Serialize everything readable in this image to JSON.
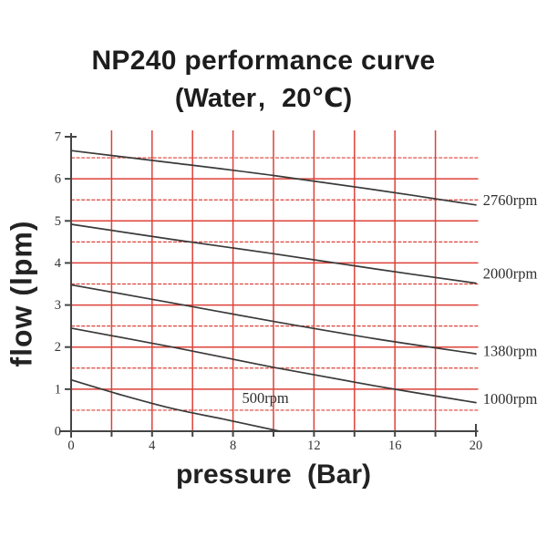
{
  "header": {
    "title": "NP240 performance curve",
    "subtitle": "(Water、20℃)",
    "subtitle_parts": {
      "open": "(Water",
      "comma": ",",
      "close": "20℃)"
    }
  },
  "chart_data": {
    "type": "line",
    "title": "NP240 performance curve",
    "subtitle": "(Water、20℃)",
    "xlabel": "pressure (Bar)",
    "ylabel": "flow (lpm)",
    "x_unit": "Bar",
    "y_unit": "lpm",
    "xlim": [
      0,
      20
    ],
    "ylim": [
      0,
      7
    ],
    "x_tick_step": 2,
    "x_tick_labels": [
      0,
      4,
      8,
      12,
      16,
      20
    ],
    "x_grid_values": [
      2,
      4,
      6,
      8,
      10,
      12,
      14,
      16,
      18
    ],
    "y_tick_labels": [
      0,
      1,
      2,
      3,
      4,
      5,
      6,
      7
    ],
    "y_grid_step": 0.5,
    "grid_on": true,
    "grid_color": "#dc4238",
    "curve_color": "#3a3a3a",
    "axis_color": "#454545",
    "legend_position": "right-of-curves",
    "series": [
      {
        "name": "2760rpm",
        "points": [
          [
            0,
            6.67
          ],
          [
            5,
            6.38
          ],
          [
            10,
            6.08
          ],
          [
            15,
            5.74
          ],
          [
            20,
            5.38
          ]
        ],
        "label": {
          "x": 20.35,
          "y": 5.48,
          "anchor": "start"
        }
      },
      {
        "name": "2000rpm",
        "points": [
          [
            0,
            4.92
          ],
          [
            5,
            4.56
          ],
          [
            10,
            4.22
          ],
          [
            15,
            3.86
          ],
          [
            20,
            3.52
          ]
        ],
        "label": {
          "x": 20.35,
          "y": 3.74,
          "anchor": "start"
        }
      },
      {
        "name": "1380rpm",
        "points": [
          [
            0,
            3.48
          ],
          [
            5,
            3.05
          ],
          [
            10,
            2.61
          ],
          [
            15,
            2.2
          ],
          [
            20,
            1.84
          ]
        ],
        "label": {
          "x": 20.35,
          "y": 1.9,
          "anchor": "start"
        }
      },
      {
        "name": "1000rpm",
        "points": [
          [
            0,
            2.45
          ],
          [
            5,
            2.0
          ],
          [
            10,
            1.52
          ],
          [
            15,
            1.08
          ],
          [
            20,
            0.68
          ]
        ],
        "label": {
          "x": 20.35,
          "y": 0.76,
          "anchor": "start"
        }
      },
      {
        "name": "500rpm",
        "points": [
          [
            0,
            1.22
          ],
          [
            2.5,
            0.86
          ],
          [
            5,
            0.54
          ],
          [
            7.5,
            0.29
          ],
          [
            10.3,
            0
          ]
        ],
        "label": {
          "x": 9.6,
          "y": 0.78,
          "anchor": "middle"
        }
      }
    ]
  }
}
